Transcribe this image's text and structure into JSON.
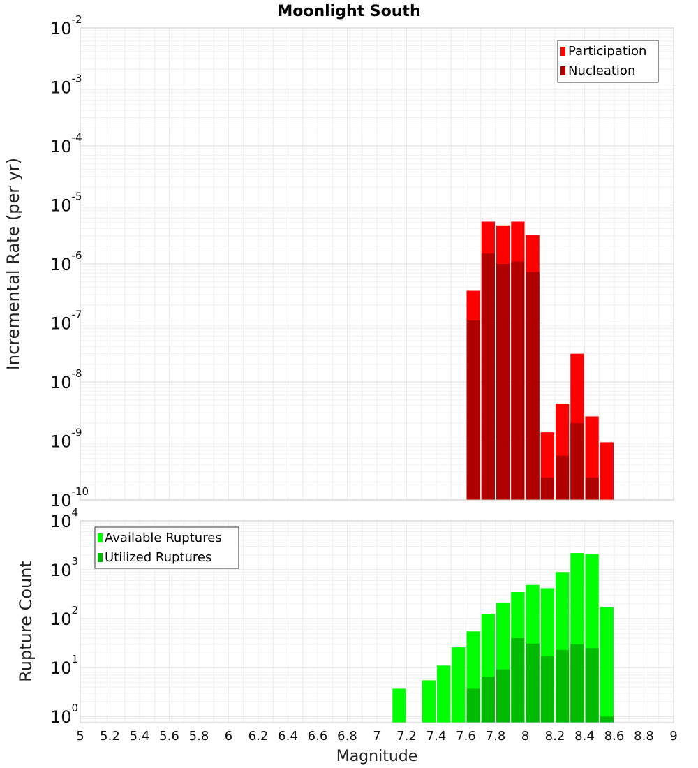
{
  "chart_data": [
    {
      "type": "bar",
      "title": "Moonlight South",
      "xlabel": "",
      "ylabel": "Incremental Rate (per yr)",
      "yscale": "log",
      "ylim": [
        1e-10,
        0.01
      ],
      "ytick_exponents": [
        -10,
        -9,
        -8,
        -7,
        -6,
        -5,
        -4,
        -3,
        -2
      ],
      "xlim": [
        5.0,
        9.0
      ],
      "bin_width": 0.1,
      "grid": true,
      "legend_position": "top-right",
      "series": [
        {
          "name": "Participation",
          "color": "#ff0000",
          "x": [
            7.65,
            7.75,
            7.85,
            7.95,
            8.05,
            8.15,
            8.25,
            8.35,
            8.45,
            8.55
          ],
          "values": [
            3.5e-07,
            5.2e-06,
            4.5e-06,
            5.2e-06,
            3.1e-06,
            1.4e-09,
            4.3e-09,
            3e-08,
            2.6e-09,
            9.5e-10
          ]
        },
        {
          "name": "Nucleation",
          "color": "#b00000",
          "x": [
            7.65,
            7.75,
            7.85,
            7.95,
            8.05,
            8.15,
            8.25,
            8.35,
            8.45,
            8.55
          ],
          "values": [
            1.1e-07,
            1.5e-06,
            1e-06,
            1.1e-06,
            7.3e-07,
            2.4e-10,
            5.6e-10,
            2e-09,
            2.4e-10,
            null
          ]
        }
      ]
    },
    {
      "type": "bar",
      "title": "",
      "xlabel": "Magnitude",
      "ylabel": "Rupture Count",
      "yscale": "log",
      "ylim": [
        0.75,
        10000
      ],
      "ytick_exponents": [
        0,
        1,
        2,
        3,
        4
      ],
      "xlim": [
        5.0,
        9.0
      ],
      "xticks": [
        "5",
        "5.2",
        "5.4",
        "5.6",
        "5.8",
        "6",
        "6.2",
        "6.4",
        "6.6",
        "6.8",
        "7",
        "7.2",
        "7.4",
        "7.6",
        "7.8",
        "8",
        "8.2",
        "8.4",
        "8.6",
        "8.8",
        "9"
      ],
      "bin_width": 0.1,
      "grid": true,
      "legend_position": "top-left",
      "series": [
        {
          "name": "Available Ruptures",
          "color": "#00ff00",
          "x": [
            7.15,
            7.35,
            7.45,
            7.55,
            7.65,
            7.75,
            7.85,
            7.95,
            8.05,
            8.15,
            8.25,
            8.35,
            8.45,
            8.55
          ],
          "values": [
            3.7,
            5.5,
            11,
            26,
            55,
            125,
            210,
            350,
            490,
            420,
            900,
            2200,
            2100,
            175
          ]
        },
        {
          "name": "Utilized Ruptures",
          "color": "#00bb00",
          "x": [
            7.65,
            7.75,
            7.85,
            7.95,
            8.05,
            8.15,
            8.25,
            8.35,
            8.45,
            8.55
          ],
          "values": [
            3.7,
            6.5,
            9.2,
            40,
            31,
            17,
            23,
            30,
            25,
            1
          ]
        }
      ]
    }
  ]
}
